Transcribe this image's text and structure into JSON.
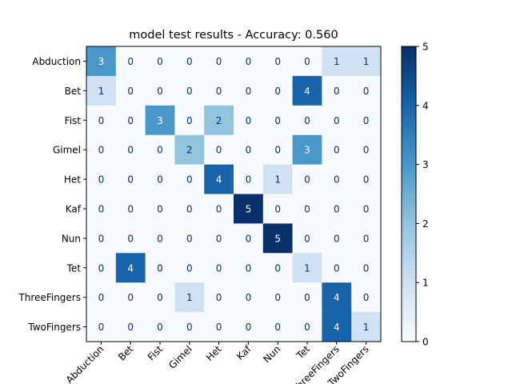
{
  "chart_data": {
    "type": "heatmap",
    "title": "model test results - Accuracy: 0.560",
    "xlabel": "",
    "ylabel": "",
    "row_labels": [
      "Abduction",
      "Bet",
      "Fist",
      "Gimel",
      "Het",
      "Kaf",
      "Nun",
      "Tet",
      "ThreeFingers",
      "TwoFingers"
    ],
    "col_labels": [
      "Abduction",
      "Bet",
      "Fist",
      "Gimel",
      "Het",
      "Kaf",
      "Nun",
      "Tet",
      "ThreeFingers",
      "TwoFingers"
    ],
    "values": [
      [
        3,
        0,
        0,
        0,
        0,
        0,
        0,
        0,
        1,
        1
      ],
      [
        1,
        0,
        0,
        0,
        0,
        0,
        0,
        4,
        0,
        0
      ],
      [
        0,
        0,
        3,
        0,
        2,
        0,
        0,
        0,
        0,
        0
      ],
      [
        0,
        0,
        0,
        2,
        0,
        0,
        0,
        3,
        0,
        0
      ],
      [
        0,
        0,
        0,
        0,
        4,
        0,
        1,
        0,
        0,
        0
      ],
      [
        0,
        0,
        0,
        0,
        0,
        5,
        0,
        0,
        0,
        0
      ],
      [
        0,
        0,
        0,
        0,
        0,
        0,
        5,
        0,
        0,
        0
      ],
      [
        0,
        4,
        0,
        0,
        0,
        0,
        0,
        1,
        0,
        0
      ],
      [
        0,
        0,
        0,
        1,
        0,
        0,
        0,
        0,
        4,
        0
      ],
      [
        0,
        0,
        0,
        0,
        0,
        0,
        0,
        0,
        4,
        1
      ]
    ],
    "colorbar": {
      "min": 0,
      "max": 5,
      "ticks": [
        0,
        1,
        2,
        3,
        4,
        5
      ],
      "colormap": "Blues"
    },
    "colors": {
      "scale": [
        "#f7fbff",
        "#cfe1f2",
        "#93c4de",
        "#4a98c9",
        "#1764ab",
        "#08306b"
      ],
      "text_dark": "#08306b",
      "text_light": "#ffffff"
    }
  }
}
